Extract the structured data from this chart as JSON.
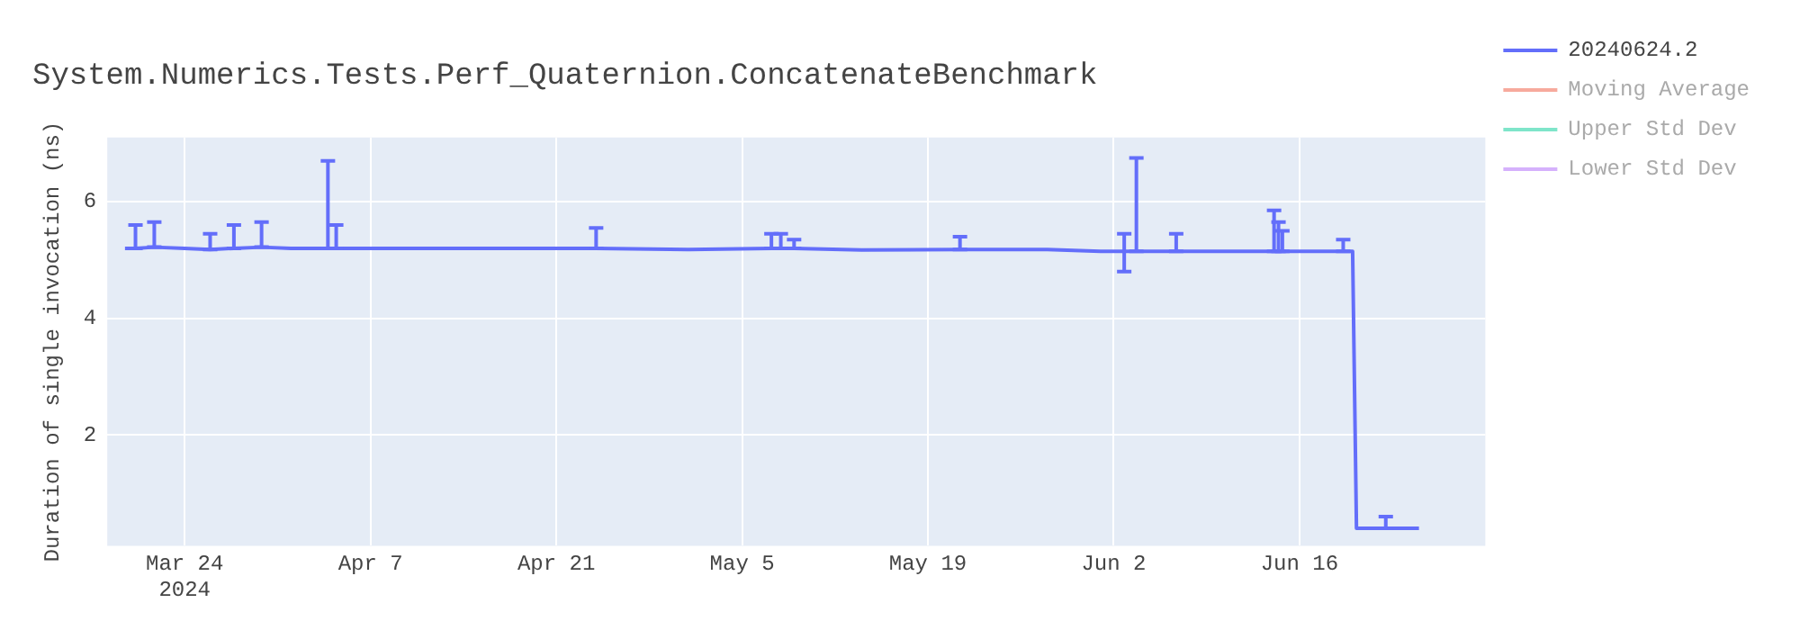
{
  "chart_data": {
    "type": "line",
    "title": "System.Numerics.Tests.Perf_Quaternion.ConcatenateBenchmark",
    "ylabel": "Duration of single invocation (ns)",
    "x": [
      "2024-03-19T12:00",
      "2024-03-20T07:00",
      "2024-03-21T17:00",
      "2024-03-24",
      "2024-03-25T22:00",
      "2024-03-27T17:00",
      "2024-03-29T19:00",
      "2024-04-01",
      "2024-04-03T19:00",
      "2024-04-04T10:00",
      "2024-04-10",
      "2024-04-17",
      "2024-04-24",
      "2024-05-01",
      "2024-05-07T05:00",
      "2024-05-07T22:00",
      "2024-05-08T22:00",
      "2024-05-14",
      "2024-05-21T10:00",
      "2024-05-28",
      "2024-06-01",
      "2024-06-02T19:00",
      "2024-06-03T17:00",
      "2024-06-06T17:00",
      "2024-06-14T02:00",
      "2024-06-14T10:00",
      "2024-06-14T17:00",
      "2024-06-19T07:00",
      "2024-06-20",
      "2024-06-20T07:00",
      "2024-06-22T12:00",
      "2024-06-25"
    ],
    "series": [
      {
        "name": "20240624.2",
        "color": "#636efa",
        "values": [
          5.2,
          5.2,
          5.22,
          5.2,
          5.18,
          5.2,
          5.22,
          5.2,
          5.2,
          5.2,
          5.2,
          5.2,
          5.2,
          5.18,
          5.2,
          5.2,
          5.2,
          5.17,
          5.18,
          5.18,
          5.15,
          5.15,
          5.15,
          5.15,
          5.15,
          5.15,
          5.15,
          5.15,
          5.15,
          0.4,
          0.4,
          0.4
        ],
        "errors": [
          null,
          [
            5.2,
            5.6
          ],
          [
            5.22,
            5.65
          ],
          null,
          [
            5.18,
            5.45
          ],
          [
            5.2,
            5.6
          ],
          [
            5.22,
            5.65
          ],
          null,
          [
            5.2,
            6.7
          ],
          [
            5.2,
            5.6
          ],
          null,
          null,
          [
            5.2,
            5.55
          ],
          null,
          [
            5.2,
            5.45
          ],
          [
            5.2,
            5.45
          ],
          [
            5.2,
            5.35
          ],
          null,
          [
            5.18,
            5.4
          ],
          null,
          null,
          [
            4.8,
            5.45
          ],
          [
            5.15,
            6.75
          ],
          [
            5.15,
            5.45
          ],
          [
            5.15,
            5.85
          ],
          [
            5.15,
            5.65
          ],
          [
            5.15,
            5.5
          ],
          [
            5.15,
            5.35
          ],
          null,
          null,
          [
            0.4,
            0.6
          ],
          null
        ]
      },
      {
        "name": "Moving Average",
        "color": "#ef553b",
        "values": [
          null,
          null,
          null,
          null,
          null,
          null,
          null,
          null,
          null,
          null,
          null,
          null,
          null,
          null,
          null,
          null,
          null,
          null,
          null,
          null,
          null,
          null,
          null,
          null,
          null,
          null,
          null,
          null,
          null,
          null,
          null,
          null
        ]
      },
      {
        "name": "Upper Std Dev",
        "color": "#00cc96",
        "values": [
          null,
          null,
          null,
          null,
          null,
          null,
          null,
          null,
          null,
          null,
          null,
          null,
          null,
          null,
          null,
          null,
          null,
          null,
          null,
          null,
          null,
          null,
          null,
          null,
          null,
          null,
          null,
          null,
          null,
          null,
          null,
          null
        ]
      },
      {
        "name": "Lower Std Dev",
        "color": "#ab63fa",
        "values": [
          null,
          null,
          null,
          null,
          null,
          null,
          null,
          null,
          null,
          null,
          null,
          null,
          null,
          null,
          null,
          null,
          null,
          null,
          null,
          null,
          null,
          null,
          null,
          null,
          null,
          null,
          null,
          null,
          null,
          null,
          null,
          null
        ]
      }
    ],
    "xlim": [
      "2024-03-18T04:00",
      "2024-06-30"
    ],
    "xticks": [
      {
        "value": "2024-03-24",
        "label": "Mar 24\n2024"
      },
      {
        "value": "2024-04-07",
        "label": "Apr 7"
      },
      {
        "value": "2024-04-21",
        "label": "Apr 21"
      },
      {
        "value": "2024-05-05",
        "label": "May 5"
      },
      {
        "value": "2024-05-19",
        "label": "May 19"
      },
      {
        "value": "2024-06-02",
        "label": "Jun 2"
      },
      {
        "value": "2024-06-16",
        "label": "Jun 16"
      }
    ],
    "ylim": [
      0.1,
      7.1
    ],
    "yticks": [
      2,
      4,
      6
    ],
    "grid": true,
    "legend": "top right"
  }
}
